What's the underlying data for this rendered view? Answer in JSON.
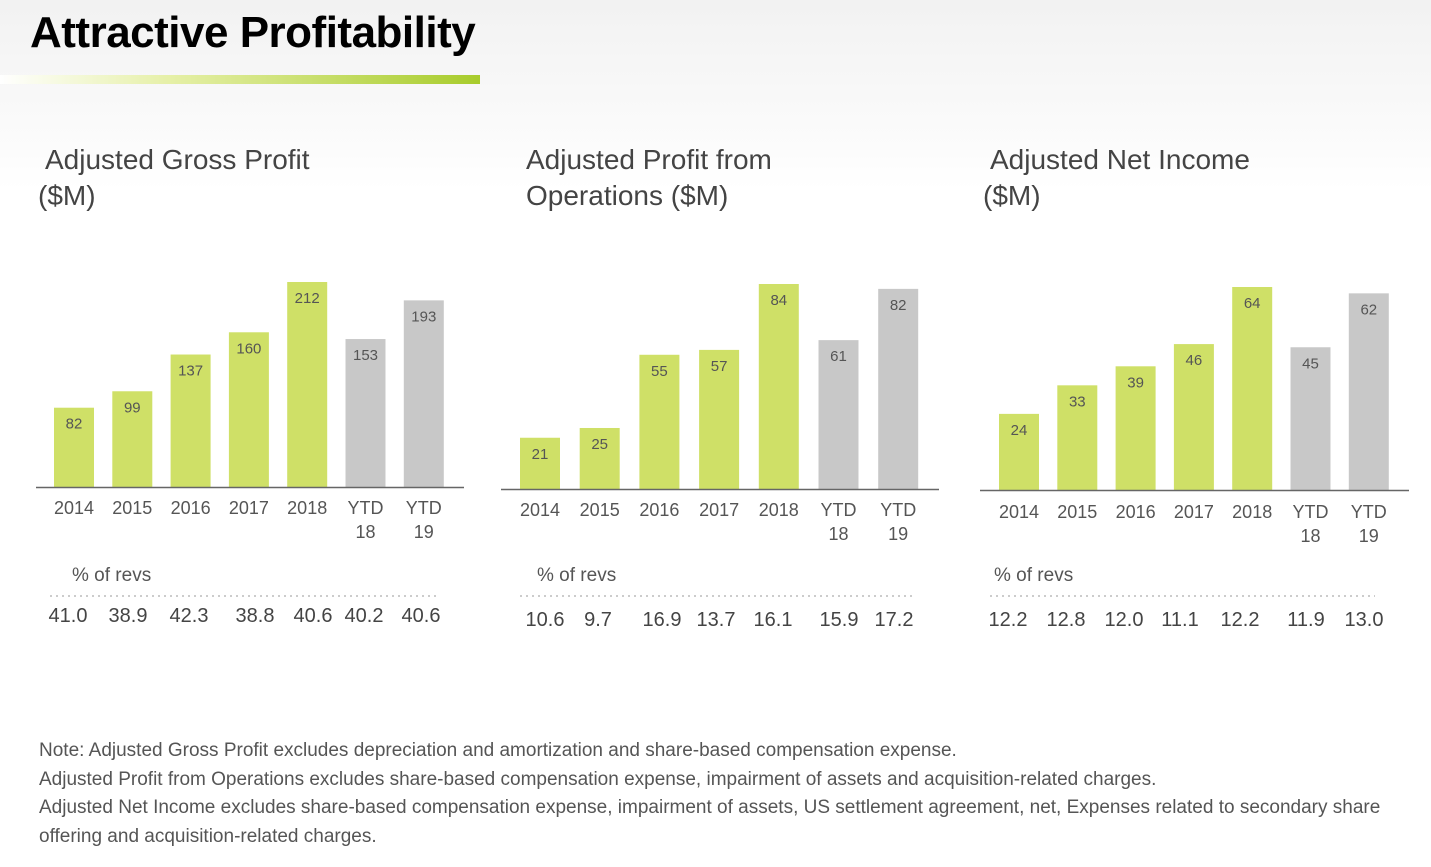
{
  "page": {
    "title": "Attractive Profitability"
  },
  "colors": {
    "green": "#cfe067",
    "gray": "#c8c8c8",
    "axis": "#666666",
    "accent_rule": "#a8cc2c"
  },
  "chart_data": [
    {
      "type": "bar",
      "title_line1": "Adjusted Gross Profit",
      "title_line2": "($M)",
      "categories": [
        "2014",
        "2015",
        "2016",
        "2017",
        "2018",
        "YTD 18",
        "YTD 19"
      ],
      "category_lines": [
        [
          "2014"
        ],
        [
          "2015"
        ],
        [
          "2016"
        ],
        [
          "2017"
        ],
        [
          "2018"
        ],
        [
          "YTD",
          "18"
        ],
        [
          "YTD",
          "19"
        ]
      ],
      "values": [
        82,
        99,
        137,
        160,
        212,
        153,
        193
      ],
      "bar_colors": [
        "green",
        "green",
        "green",
        "green",
        "green",
        "gray",
        "gray"
      ],
      "ylim": [
        0,
        212
      ],
      "pct_label": "% of revs",
      "pct_values": [
        "41.0",
        "38.9",
        "42.3",
        "38.8",
        "40.6",
        "40.2",
        "40.6"
      ]
    },
    {
      "type": "bar",
      "title_line1": "Adjusted Profit from",
      "title_line2": "Operations ($M)",
      "categories": [
        "2014",
        "2015",
        "2016",
        "2017",
        "2018",
        "YTD 18",
        "YTD 19"
      ],
      "category_lines": [
        [
          "2014"
        ],
        [
          "2015"
        ],
        [
          "2016"
        ],
        [
          "2017"
        ],
        [
          "2018"
        ],
        [
          "YTD",
          "18"
        ],
        [
          "YTD",
          "19"
        ]
      ],
      "values": [
        21,
        25,
        55,
        57,
        84,
        61,
        82
      ],
      "bar_colors": [
        "green",
        "green",
        "green",
        "green",
        "green",
        "gray",
        "gray"
      ],
      "ylim": [
        0,
        84
      ],
      "pct_label": "% of revs",
      "pct_values": [
        "10.6",
        "9.7",
        "16.9",
        "13.7",
        "16.1",
        "15.9",
        "17.2"
      ]
    },
    {
      "type": "bar",
      "title_line1": "Adjusted Net Income",
      "title_line2": "($M)",
      "categories": [
        "2014",
        "2015",
        "2016",
        "2017",
        "2018",
        "YTD 18",
        "YTD 19"
      ],
      "category_lines": [
        [
          "2014"
        ],
        [
          "2015"
        ],
        [
          "2016"
        ],
        [
          "2017"
        ],
        [
          "2018"
        ],
        [
          "YTD",
          "18"
        ],
        [
          "YTD",
          "19"
        ]
      ],
      "values": [
        24,
        33,
        39,
        46,
        64,
        45,
        62
      ],
      "bar_colors": [
        "green",
        "green",
        "green",
        "green",
        "green",
        "gray",
        "gray"
      ],
      "ylim": [
        0,
        64
      ],
      "pct_label": "% of revs",
      "pct_values": [
        "12.2",
        "12.8",
        "12.0",
        "11.1",
        "12.2",
        "11.9",
        "13.0"
      ]
    }
  ],
  "notes": [
    "Note: Adjusted Gross Profit excludes depreciation and amortization and share-based compensation expense.",
    "Adjusted Profit from Operations excludes share-based compensation expense, impairment of assets and acquisition-related charges.",
    "Adjusted Net Income excludes share-based compensation expense, impairment of assets, US settlement agreement, net, Expenses related to secondary share offering and acquisition-related charges."
  ]
}
